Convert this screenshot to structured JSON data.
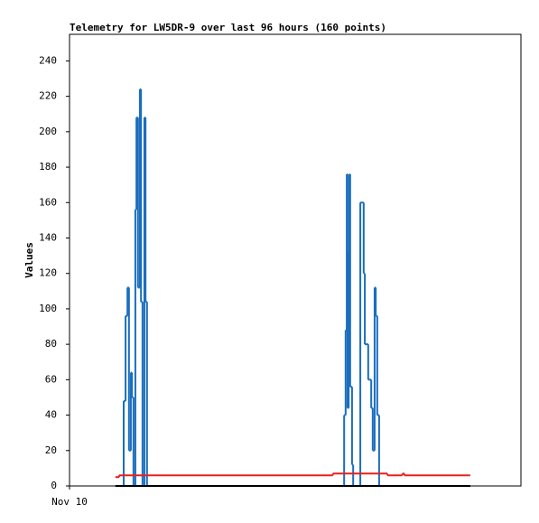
{
  "chart_data": {
    "type": "step",
    "title": "Telemetry for LW5DR-9 over last 96 hours (160 points)",
    "y_label": "Values",
    "xlim": [
      0,
      120
    ],
    "xticks": [
      {
        "value": 0,
        "label": "Nov 10"
      }
    ],
    "ylim": [
      0,
      255
    ],
    "yticks": [
      0,
      20,
      40,
      60,
      80,
      100,
      120,
      140,
      160,
      180,
      200,
      220,
      240
    ],
    "series": [
      {
        "color": "#1a6ebf",
        "x": [
          12.2,
          14.4,
          14.9,
          15.4,
          15.8,
          16.3,
          16.6,
          17.0,
          17.5,
          17.8,
          18.2,
          18.7,
          19.0,
          19.4,
          19.9,
          20.2,
          20.6,
          73.0,
          73.4,
          73.7,
          73.9,
          74.2,
          74.4,
          74.6,
          75.1,
          75.4,
          77.3,
          78.2,
          78.5,
          79.4,
          80.2,
          80.6,
          81.1,
          81.4,
          81.8,
          82.3,
          106.3
        ],
        "values": [
          0,
          48,
          96,
          112,
          20,
          64,
          50,
          0,
          156,
          208,
          112,
          224,
          104,
          0,
          208,
          104,
          0,
          40,
          88,
          176,
          44,
          132,
          176,
          56,
          12,
          0,
          160,
          120,
          80,
          60,
          44,
          20,
          112,
          96,
          40,
          0,
          0
        ]
      },
      {
        "color": "#e8201a",
        "x": [
          12.2,
          13.2,
          70.0,
          84.5,
          88.5,
          89.0,
          106.3
        ],
        "values": [
          5,
          6,
          7,
          6,
          7,
          6,
          6
        ]
      },
      {
        "color": "#000000",
        "x": [
          12.2,
          106.3
        ],
        "values": [
          0,
          0
        ]
      }
    ]
  }
}
